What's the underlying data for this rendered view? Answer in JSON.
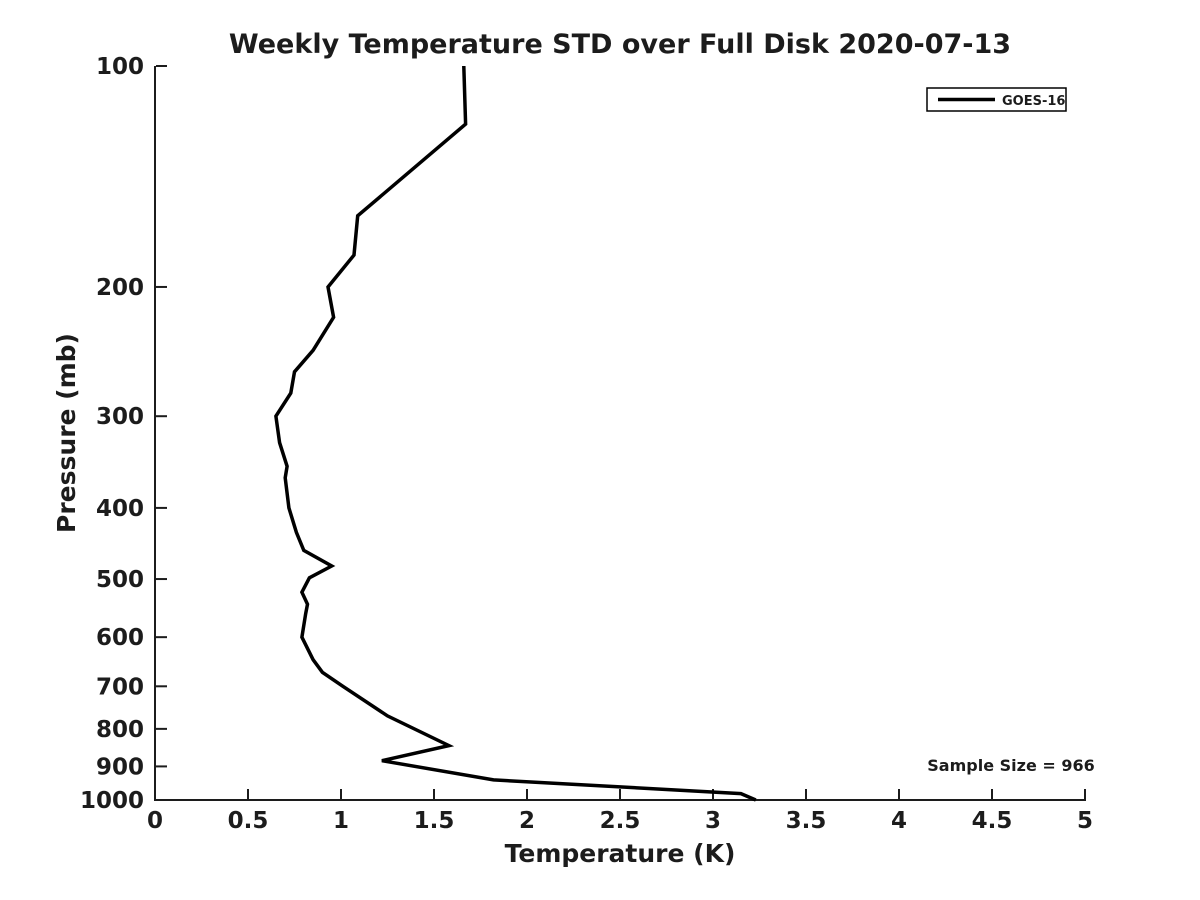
{
  "chart_data": {
    "type": "line",
    "title": "Weekly Temperature STD over Full Disk 2020-07-13",
    "xlabel": "Temperature (K)",
    "ylabel": "Pressure (mb)",
    "xlim": [
      0,
      5
    ],
    "ylim": [
      100,
      1000
    ],
    "yscale": "log",
    "y_axis_inverted": true,
    "grid": false,
    "x_ticks": [
      0,
      0.5,
      1,
      1.5,
      2,
      2.5,
      3,
      3.5,
      4,
      4.5,
      5
    ],
    "x_tick_labels": [
      "0",
      "0.5",
      "1",
      "1.5",
      "2",
      "2.5",
      "3",
      "3.5",
      "4",
      "4.5",
      "5"
    ],
    "y_ticks": [
      100,
      200,
      300,
      400,
      500,
      600,
      700,
      800,
      900,
      1000
    ],
    "y_tick_labels": [
      "100",
      "200",
      "300",
      "400",
      "500",
      "600",
      "700",
      "800",
      "900",
      "1000"
    ],
    "legend": {
      "position": "top-right",
      "entries": [
        {
          "label": "GOES-16",
          "color": "#000000"
        }
      ]
    },
    "annotation": "Sample Size = 966",
    "series": [
      {
        "name": "GOES-16",
        "color": "#000000",
        "linewidth": 3.5,
        "points_format": "[temperature_K, pressure_mb]",
        "points": [
          [
            1.66,
            100
          ],
          [
            1.67,
            120
          ],
          [
            1.09,
            160
          ],
          [
            1.07,
            181
          ],
          [
            0.93,
            200
          ],
          [
            0.96,
            220
          ],
          [
            0.85,
            244
          ],
          [
            0.75,
            261
          ],
          [
            0.73,
            279
          ],
          [
            0.65,
            300
          ],
          [
            0.67,
            326
          ],
          [
            0.71,
            351
          ],
          [
            0.7,
            364
          ],
          [
            0.72,
            400
          ],
          [
            0.76,
            432
          ],
          [
            0.8,
            457
          ],
          [
            0.95,
            480
          ],
          [
            0.83,
            498
          ],
          [
            0.79,
            521
          ],
          [
            0.82,
            541
          ],
          [
            0.81,
            557
          ],
          [
            0.79,
            600
          ],
          [
            0.85,
            644
          ],
          [
            0.9,
            670
          ],
          [
            1.01,
            700
          ],
          [
            1.25,
            768
          ],
          [
            1.58,
            843
          ],
          [
            1.22,
            884
          ],
          [
            1.82,
            939
          ],
          [
            3.15,
            980
          ],
          [
            3.23,
            1000
          ]
        ]
      }
    ],
    "colors": {
      "line": "#000000",
      "axis": "#1c1c1c",
      "background": "#ffffff"
    }
  }
}
